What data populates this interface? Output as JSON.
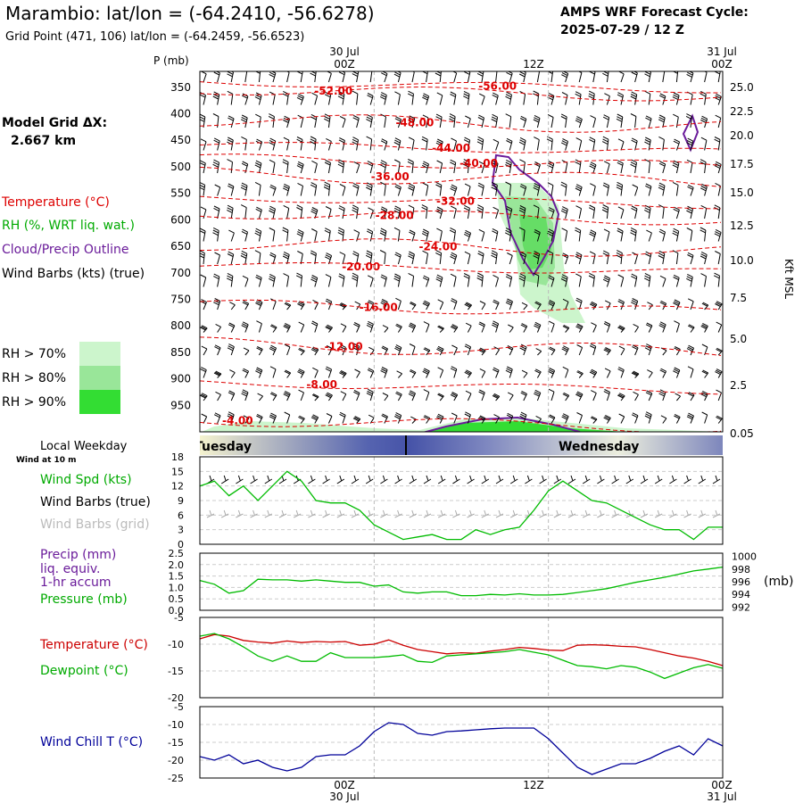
{
  "header": {
    "title": "Marambio:  lat/lon = (-64.2410, -56.6278)",
    "subtitle": "Grid Point (471, 106) lat/lon = (-64.2459, -56.6523)",
    "cycle_title": "AMPS WRF Forecast Cycle:",
    "cycle_value": "2025-07-29 / 12  Z"
  },
  "time_axis": {
    "top_dates": [
      "30 Jul",
      "31 Jul"
    ],
    "top_hours": [
      "00Z",
      "12Z",
      "00Z"
    ],
    "bottom_hours": [
      "00Z",
      "12Z",
      "00Z"
    ],
    "bottom_dates": [
      "30 Jul",
      "31 Jul"
    ],
    "hours_from_start": [
      12,
      24,
      36
    ]
  },
  "sidebar": {
    "grid_label": "Model Grid ΔX:",
    "grid_value": "2.667 km",
    "legend": [
      {
        "text": "Temperature (°C)",
        "color": "#dd0000"
      },
      {
        "text": "RH (%, WRT liq. wat.)",
        "color": "#00aa00"
      },
      {
        "text": "Cloud/Precip Outline",
        "color": "#6a1b9a"
      },
      {
        "text": "Wind Barbs (kts) (true)",
        "color": "#000000"
      }
    ],
    "rh_key": [
      {
        "text": "RH > 70%",
        "color": "#ccf5cc"
      },
      {
        "text": "RH > 80%",
        "color": "#99e699"
      },
      {
        "text": "RH > 90%",
        "color": "#33dd33"
      }
    ]
  },
  "weekday": {
    "title": "Local Weekday",
    "labels": [
      "Tuesday",
      "Wednesday"
    ]
  },
  "chart_data": [
    {
      "type": "contour",
      "y_axis_label": "P (mb)",
      "y2_axis_label": "Kft MSL",
      "pressure_ticks": [
        350,
        400,
        450,
        500,
        550,
        600,
        650,
        700,
        750,
        800,
        850,
        900,
        950
      ],
      "height_ticks": [
        "25.0",
        "22.5",
        "20.0",
        "17.5",
        "15.0",
        "12.5",
        "10.0",
        "7.5",
        "5.0",
        "2.5",
        "0.05"
      ],
      "ylim": [
        1000,
        320
      ],
      "isotherm_labels": [
        {
          "text": "-56.00",
          "hour": 20.5,
          "p": 348
        },
        {
          "text": "-52.00",
          "hour": 9.2,
          "p": 357
        },
        {
          "text": "-48.00",
          "hour": 14.8,
          "p": 417
        },
        {
          "text": "-44.00",
          "hour": 17.3,
          "p": 465
        },
        {
          "text": "-40.00",
          "hour": 19.2,
          "p": 493
        },
        {
          "text": "-36.00",
          "hour": 13.1,
          "p": 519
        },
        {
          "text": "-32.00",
          "hour": 17.6,
          "p": 565
        },
        {
          "text": "-28.00",
          "hour": 13.4,
          "p": 592
        },
        {
          "text": "-24.00",
          "hour": 16.4,
          "p": 651
        },
        {
          "text": "-20.00",
          "hour": 11.1,
          "p": 689
        },
        {
          "text": "-16.00",
          "hour": 12.3,
          "p": 765
        },
        {
          "text": "-12.00",
          "hour": 9.9,
          "p": 839
        },
        {
          "text": "-8.00",
          "hour": 8.4,
          "p": 911
        },
        {
          "text": "-4.00",
          "hour": 2.6,
          "p": 979
        }
      ]
    },
    {
      "type": "line",
      "legend": [
        "Wind Spd (kts)",
        "Wind Barbs (true)",
        "Wind Barbs (grid)"
      ],
      "yticks": [
        0,
        3,
        6,
        9,
        12,
        15,
        18
      ],
      "ylim": [
        0,
        18
      ],
      "series": [
        {
          "name": "Wind Spd (kts)",
          "color": "#00bb00",
          "x": [
            0,
            1,
            2,
            3,
            4,
            5,
            6,
            7,
            8,
            9,
            10,
            11,
            12,
            13,
            14,
            15,
            16,
            17,
            18,
            19,
            20,
            21,
            22,
            23,
            24,
            25,
            26,
            27,
            28,
            29,
            30,
            31,
            32,
            33,
            34,
            35,
            36
          ],
          "values": [
            12,
            13,
            10,
            12,
            9,
            12,
            15,
            13,
            9,
            8.5,
            8.5,
            7,
            4,
            2.5,
            1,
            1.5,
            2,
            1,
            1,
            3,
            2,
            3,
            3.5,
            7,
            11,
            13,
            11,
            9,
            8.5,
            7,
            5.5,
            4,
            3,
            3,
            1,
            3.5,
            3.5
          ]
        }
      ]
    },
    {
      "type": "line",
      "legend": [
        "Precip (mm)",
        "liq. equiv.",
        "1-hr accum",
        "Pressure (mb)"
      ],
      "yticks": [
        "0.0",
        "0.5",
        "1.0",
        "1.5",
        "2.0",
        "2.5"
      ],
      "y2ticks": [
        "992",
        "994",
        "996",
        "998",
        "1000"
      ],
      "y2label": "(mb)",
      "ylim": [
        0,
        2.5
      ],
      "y2lim": [
        991.5,
        1000.5
      ],
      "series": [
        {
          "name": "Pressure (mb)",
          "color": "#00bb00",
          "x": [
            0,
            1,
            2,
            3,
            4,
            5,
            6,
            7,
            8,
            9,
            10,
            11,
            12,
            13,
            14,
            15,
            16,
            17,
            18,
            19,
            20,
            21,
            22,
            23,
            24,
            25,
            26,
            27,
            28,
            29,
            30,
            31,
            32,
            33,
            34,
            35,
            36
          ],
          "values": [
            996.2,
            995.6,
            994.2,
            994.6,
            996.4,
            996.3,
            996.3,
            996.1,
            996.3,
            996.1,
            995.9,
            995.9,
            995.3,
            995.5,
            994.4,
            994.2,
            994.4,
            994.4,
            993.8,
            993.8,
            994,
            993.9,
            994.1,
            993.9,
            993.9,
            994,
            994.3,
            994.6,
            994.9,
            995.4,
            995.9,
            996.3,
            996.7,
            997.2,
            997.7,
            998,
            998.3
          ]
        }
      ]
    },
    {
      "type": "line",
      "legend": [
        "Temperature (°C)",
        "Dewpoint (°C)"
      ],
      "yticks": [
        -5,
        -10,
        -15,
        -20
      ],
      "ylim": [
        -20,
        -5
      ],
      "series": [
        {
          "name": "Temperature (°C)",
          "color": "#cc0000",
          "x": [
            0,
            1,
            2,
            3,
            4,
            5,
            6,
            7,
            8,
            9,
            10,
            11,
            12,
            13,
            14,
            15,
            16,
            17,
            18,
            19,
            20,
            21,
            22,
            23,
            24,
            25,
            26,
            27,
            28,
            29,
            30,
            31,
            32,
            33,
            34,
            35,
            36
          ],
          "values": [
            -9,
            -8.2,
            -8.5,
            -9.3,
            -9.6,
            -9.8,
            -9.4,
            -9.7,
            -9.5,
            -9.6,
            -9.5,
            -10.2,
            -10,
            -9.2,
            -10.2,
            -11,
            -11.4,
            -11.8,
            -11.6,
            -11.7,
            -11.3,
            -11,
            -10.6,
            -10.8,
            -11.1,
            -11.2,
            -10.2,
            -10.1,
            -10.2,
            -10.4,
            -10.5,
            -11,
            -11.6,
            -12.2,
            -12.6,
            -13.2,
            -14
          ]
        },
        {
          "name": "Dewpoint (°C)",
          "color": "#00bb00",
          "x": [
            0,
            1,
            2,
            3,
            4,
            5,
            6,
            7,
            8,
            9,
            10,
            11,
            12,
            13,
            14,
            15,
            16,
            17,
            18,
            19,
            20,
            21,
            22,
            23,
            24,
            25,
            26,
            27,
            28,
            29,
            30,
            31,
            32,
            33,
            34,
            35,
            36
          ],
          "values": [
            -8.5,
            -8,
            -9,
            -10.5,
            -12.2,
            -13.2,
            -12.2,
            -13.2,
            -13.2,
            -11.6,
            -12.5,
            -12.5,
            -12.5,
            -12.3,
            -12,
            -13.2,
            -13.4,
            -12.2,
            -12,
            -11.8,
            -11.6,
            -11.4,
            -11,
            -11.5,
            -12,
            -13,
            -14,
            -14.2,
            -14.6,
            -14,
            -14.3,
            -15.2,
            -16.4,
            -15.4,
            -14.4,
            -13.8,
            -14.5
          ]
        }
      ]
    },
    {
      "type": "line",
      "legend": [
        "Wind Chill T (°C)"
      ],
      "yticks": [
        -5,
        -10,
        -15,
        -20,
        -25
      ],
      "ylim": [
        -25,
        -5
      ],
      "series": [
        {
          "name": "Wind Chill T (°C)",
          "color": "#000099",
          "x": [
            0,
            1,
            2,
            3,
            4,
            5,
            6,
            7,
            8,
            9,
            10,
            11,
            12,
            13,
            14,
            15,
            16,
            17,
            18,
            19,
            20,
            21,
            22,
            23,
            24,
            25,
            26,
            27,
            28,
            29,
            30,
            31,
            32,
            33,
            34,
            35,
            36
          ],
          "values": [
            -19,
            -20,
            -18.5,
            -21,
            -20,
            -22,
            -23,
            -22,
            -19,
            -18.5,
            -18.5,
            -16,
            -12,
            -9.5,
            -10,
            -12.5,
            -13,
            -12,
            -11.8,
            -11.5,
            -11.2,
            -11,
            -11,
            -11,
            -14,
            -18,
            -22,
            -24,
            -22.5,
            -21,
            -21,
            -19.5,
            -17.5,
            -16,
            -18.5,
            -14,
            -16
          ]
        }
      ]
    }
  ]
}
